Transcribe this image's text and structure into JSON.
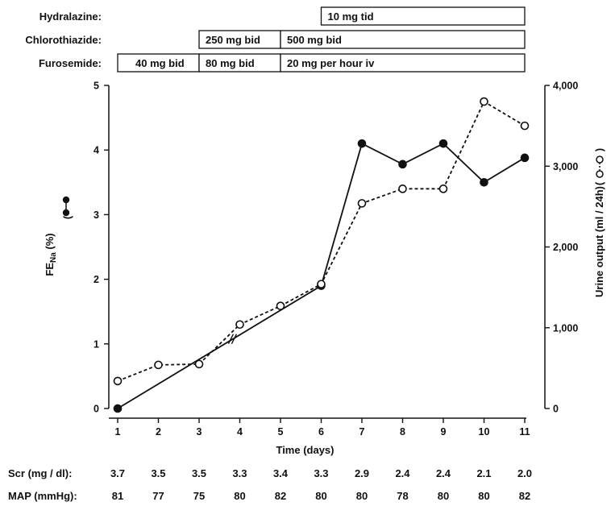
{
  "regimen": [
    {
      "drug": "Hydralazine:",
      "segments": [
        {
          "from": 6,
          "to": 11,
          "label": "10 mg tid"
        }
      ]
    },
    {
      "drug": "Chlorothiazide:",
      "segments": [
        {
          "from": 3,
          "to": 5,
          "label": "250 mg bid"
        },
        {
          "from": 5,
          "to": 11,
          "label": "500 mg bid"
        }
      ]
    },
    {
      "drug": "Furosemide:",
      "segments": [
        {
          "from": 1,
          "to": 3,
          "label": "40 mg bid"
        },
        {
          "from": 3,
          "to": 5,
          "label": "80 mg bid"
        },
        {
          "from": 5,
          "to": 11,
          "label": "20 mg per hour iv"
        }
      ]
    }
  ],
  "rows": [
    {
      "label": "Scr (mg / dl):",
      "values": [
        "3.7",
        "3.5",
        "3.5",
        "3.3",
        "3.4",
        "3.3",
        "2.9",
        "2.4",
        "2.4",
        "2.1",
        "2.0"
      ]
    },
    {
      "label": "MAP (mmHg):",
      "values": [
        "81",
        "77",
        "75",
        "80",
        "82",
        "80",
        "80",
        "78",
        "80",
        "80",
        "82"
      ]
    }
  ],
  "chart_data": {
    "type": "line",
    "xlabel": "Time (days)",
    "x": [
      1,
      2,
      3,
      4,
      5,
      6,
      7,
      8,
      9,
      10,
      11
    ],
    "xlim": [
      1,
      11
    ],
    "ylabel_left": {
      "main": "FE",
      "sub": "Na",
      "unit": "(%)"
    },
    "ylim_left": [
      0,
      5
    ],
    "yticks_left": [
      "0",
      "1",
      "2",
      "3",
      "4",
      "5"
    ],
    "ylabel_right": "Urine output (ml / 24h)",
    "ylim_right": [
      0,
      4000
    ],
    "yticks_right": [
      "0",
      "1,000",
      "2,000",
      "3,000",
      "4,000"
    ],
    "grid": false,
    "series": [
      {
        "axis": "left",
        "style": "solid",
        "marker": "filled-circle",
        "points": [
          [
            1,
            0.0
          ],
          [
            6,
            1.9
          ],
          [
            7,
            4.1
          ],
          [
            8,
            3.78
          ],
          [
            9,
            4.1
          ],
          [
            10,
            3.5
          ],
          [
            11,
            3.88
          ]
        ]
      },
      {
        "axis": "right",
        "style": "dashed",
        "marker": "open-circle",
        "points": [
          [
            1,
            340
          ],
          [
            2,
            540
          ],
          [
            3,
            550
          ],
          [
            4,
            1040
          ],
          [
            5,
            1270
          ],
          [
            6,
            1540
          ],
          [
            7,
            2540
          ],
          [
            8,
            2720
          ],
          [
            9,
            2720
          ],
          [
            10,
            3800
          ],
          [
            11,
            3500
          ]
        ]
      }
    ],
    "axis_break_at_x": 3.8,
    "colors": {
      "ink": "#111111",
      "open_marker_fill": "#ffffff"
    }
  }
}
